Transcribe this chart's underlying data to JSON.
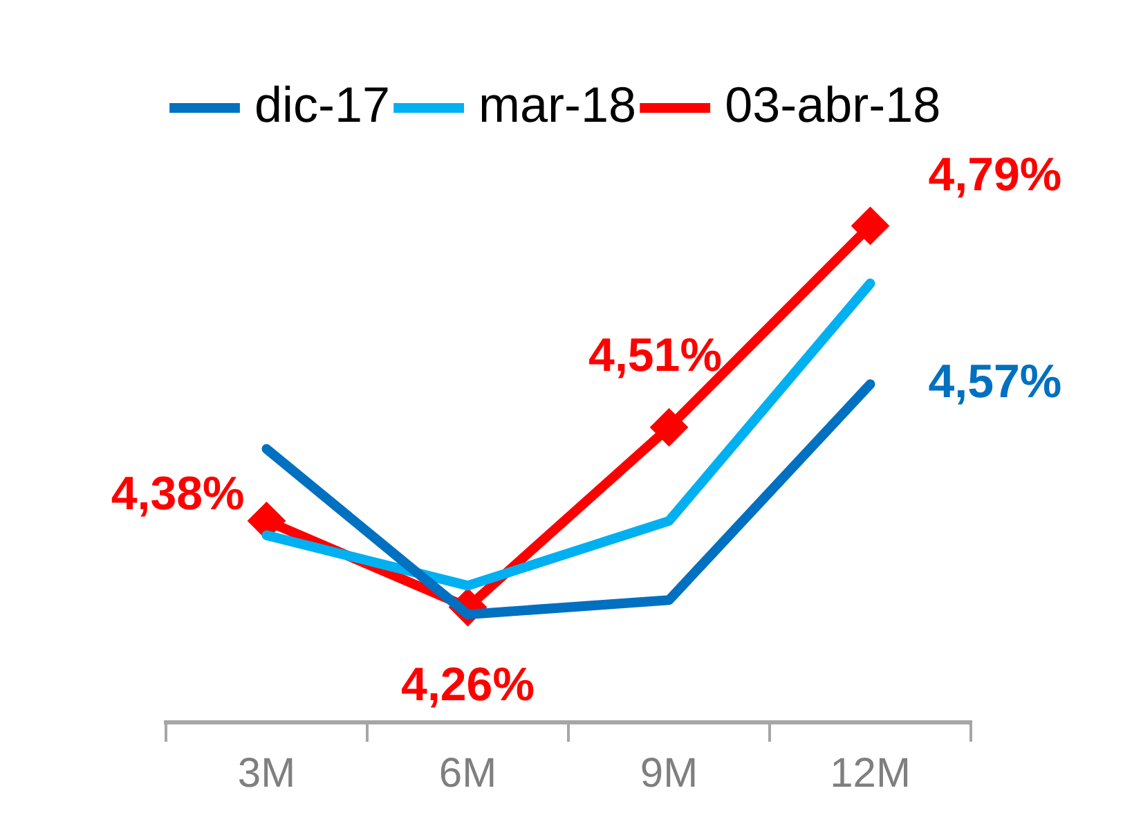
{
  "chart_data": {
    "type": "line",
    "categories": [
      "3M",
      "6M",
      "9M",
      "12M"
    ],
    "legend": "top",
    "grid": false,
    "tick_labels": "x",
    "line_style": "solid",
    "series": [
      {
        "name": "dic-17",
        "color": "#0070c0",
        "marker": "none",
        "values": [
          4.48,
          4.25,
          4.27,
          4.57
        ],
        "value_labels": [
          null,
          null,
          null,
          "4,57%"
        ]
      },
      {
        "name": "mar-18",
        "color": "#00b0f0",
        "marker": "none",
        "values": [
          4.36,
          4.29,
          4.38,
          4.71
        ],
        "value_labels": [
          null,
          null,
          null,
          null
        ]
      },
      {
        "name": "03-abr-18",
        "color": "#ff0000",
        "marker": "diamond",
        "values": [
          4.38,
          4.26,
          4.51,
          4.79
        ],
        "value_labels": [
          "4,38%",
          "4,26%",
          "4,51%",
          "4,79%"
        ]
      }
    ]
  }
}
